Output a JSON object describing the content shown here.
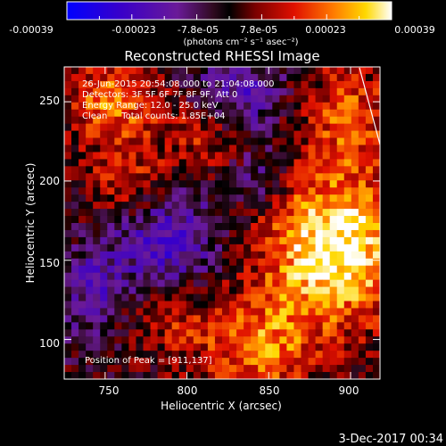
{
  "colorbar": {
    "tick_labels": [
      "-0.00039",
      "-0.00023",
      "-7.8e-05",
      "7.8e-05",
      "0.00023",
      "0.00039"
    ],
    "units": "(photons cm⁻² s⁻¹ asec⁻²)",
    "range": [
      -0.00039,
      0.00039
    ]
  },
  "chart_data": {
    "type": "heatmap",
    "title": "Reconstructed RHESSI Image",
    "xlabel": "Heliocentric X (arcsec)",
    "ylabel": "Heliocentric Y (arcsec)",
    "xlim": [
      725,
      918
    ],
    "ylim": [
      75,
      272
    ],
    "xticks": [
      "750",
      "800",
      "850",
      "900"
    ],
    "yticks": [
      "100",
      "150",
      "200",
      "250"
    ],
    "xtick_values": [
      750,
      800,
      850,
      900
    ],
    "ytick_values": [
      100,
      150,
      200,
      250
    ],
    "peak": [
      911,
      137
    ],
    "annotations": {
      "time": "26-Jun-2015 20:54:08.000 to 21:04:08.000",
      "detectors": "Detectors: 3F 5F 6F 7F 8F 9F, Att 0",
      "energy": "Energy Range: 12.0 - 25.0 keV",
      "method": "Clean     Total counts: 1.85E+04",
      "peak_text": "Position of Peak = [911,137]"
    }
  },
  "footer": {
    "date": "3-Dec-2017 00:34"
  }
}
